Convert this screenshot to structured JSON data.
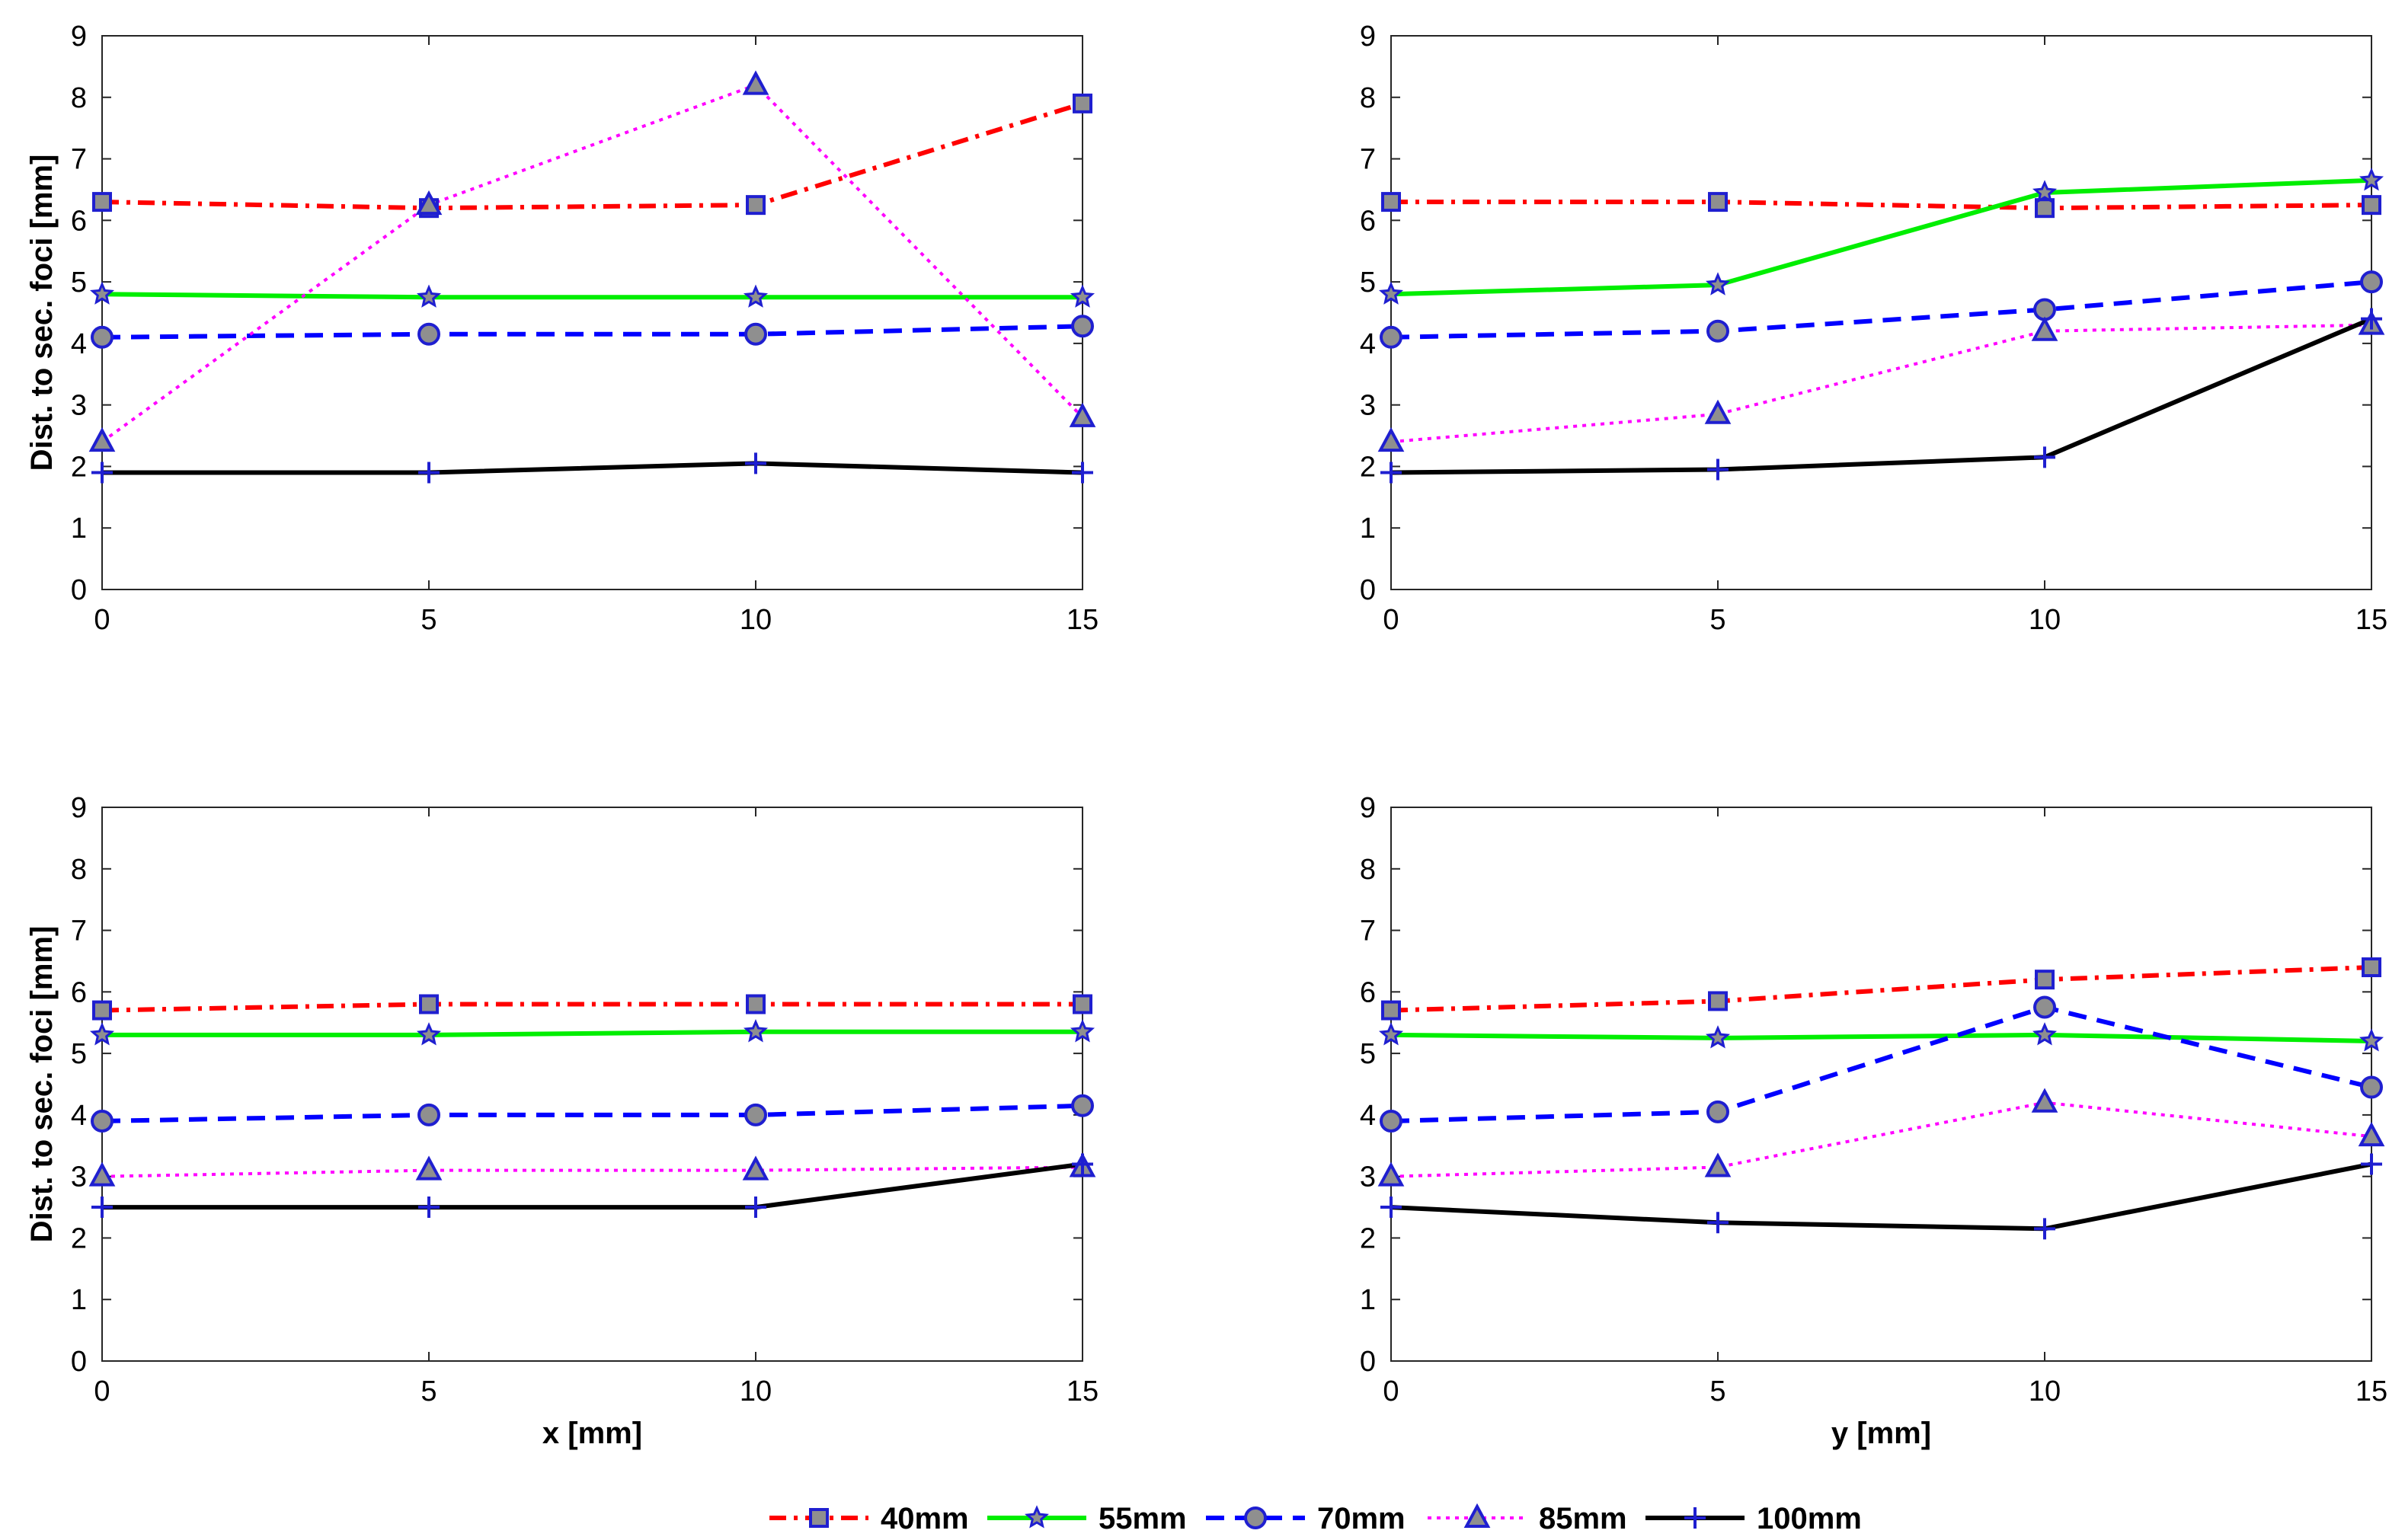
{
  "chart_data": [
    {
      "type": "line",
      "x": [
        0,
        5,
        10,
        15
      ],
      "xlim": [
        0,
        15
      ],
      "ylim": [
        0,
        9
      ],
      "xticks": [
        0,
        5,
        10,
        15
      ],
      "yticks": [
        0,
        1,
        2,
        3,
        4,
        5,
        6,
        7,
        8,
        9
      ],
      "xlabel": "",
      "ylabel": "Dist. to sec. foci [mm]",
      "grid": false,
      "series": [
        {
          "name": "40mm",
          "values": [
            6.3,
            6.2,
            6.25,
            7.9
          ]
        },
        {
          "name": "55mm",
          "values": [
            4.8,
            4.75,
            4.75,
            4.75
          ]
        },
        {
          "name": "70mm",
          "values": [
            4.1,
            4.15,
            4.15,
            4.28
          ]
        },
        {
          "name": "85mm",
          "values": [
            2.4,
            6.25,
            8.2,
            2.8
          ]
        },
        {
          "name": "100mm",
          "values": [
            1.9,
            1.9,
            2.05,
            1.9
          ]
        }
      ]
    },
    {
      "type": "line",
      "x": [
        0,
        5,
        10,
        15
      ],
      "xlim": [
        0,
        15
      ],
      "ylim": [
        0,
        9
      ],
      "xticks": [
        0,
        5,
        10,
        15
      ],
      "yticks": [
        0,
        1,
        2,
        3,
        4,
        5,
        6,
        7,
        8,
        9
      ],
      "xlabel": "",
      "ylabel": "",
      "grid": false,
      "series": [
        {
          "name": "40mm",
          "values": [
            6.3,
            6.3,
            6.2,
            6.25
          ]
        },
        {
          "name": "55mm",
          "values": [
            4.8,
            4.95,
            6.45,
            6.65
          ]
        },
        {
          "name": "70mm",
          "values": [
            4.1,
            4.2,
            4.55,
            5.0
          ]
        },
        {
          "name": "85mm",
          "values": [
            2.4,
            2.85,
            4.2,
            4.3
          ]
        },
        {
          "name": "100mm",
          "values": [
            1.9,
            1.95,
            2.15,
            4.4
          ]
        }
      ]
    },
    {
      "type": "line",
      "x": [
        0,
        5,
        10,
        15
      ],
      "xlim": [
        0,
        15
      ],
      "ylim": [
        0,
        9
      ],
      "xticks": [
        0,
        5,
        10,
        15
      ],
      "yticks": [
        0,
        1,
        2,
        3,
        4,
        5,
        6,
        7,
        8,
        9
      ],
      "xlabel": "x [mm]",
      "ylabel": "Dist. to sec. foci [mm]",
      "grid": false,
      "series": [
        {
          "name": "40mm",
          "values": [
            5.7,
            5.8,
            5.8,
            5.8
          ]
        },
        {
          "name": "55mm",
          "values": [
            5.3,
            5.3,
            5.35,
            5.35
          ]
        },
        {
          "name": "70mm",
          "values": [
            3.9,
            4.0,
            4.0,
            4.15
          ]
        },
        {
          "name": "85mm",
          "values": [
            3.0,
            3.1,
            3.1,
            3.15
          ]
        },
        {
          "name": "100mm",
          "values": [
            2.5,
            2.5,
            2.5,
            3.2
          ]
        }
      ]
    },
    {
      "type": "line",
      "x": [
        0,
        5,
        10,
        15
      ],
      "xlim": [
        0,
        15
      ],
      "ylim": [
        0,
        9
      ],
      "xticks": [
        0,
        5,
        10,
        15
      ],
      "yticks": [
        0,
        1,
        2,
        3,
        4,
        5,
        6,
        7,
        8,
        9
      ],
      "xlabel": "y [mm]",
      "ylabel": "",
      "grid": false,
      "series": [
        {
          "name": "40mm",
          "values": [
            5.7,
            5.85,
            6.2,
            6.4
          ]
        },
        {
          "name": "55mm",
          "values": [
            5.3,
            5.25,
            5.3,
            5.2
          ]
        },
        {
          "name": "70mm",
          "values": [
            3.9,
            4.05,
            5.75,
            4.45
          ]
        },
        {
          "name": "85mm",
          "values": [
            3.0,
            3.15,
            4.2,
            3.65
          ]
        },
        {
          "name": "100mm",
          "values": [
            2.5,
            2.25,
            2.15,
            3.2
          ]
        }
      ]
    }
  ],
  "legend": {
    "placement": "bottom-center",
    "entries": [
      {
        "label": "40mm",
        "color": "#ff0000",
        "line_style": "dash-dot",
        "marker": "square"
      },
      {
        "label": "55mm",
        "color": "#00ee00",
        "line_style": "solid",
        "marker": "star"
      },
      {
        "label": "70mm",
        "color": "#0000ff",
        "line_style": "dashed",
        "marker": "circle"
      },
      {
        "label": "85mm",
        "color": "#ff00ff",
        "line_style": "dotted",
        "marker": "triangle"
      },
      {
        "label": "100mm",
        "color": "#000000",
        "line_style": "solid",
        "marker": "plus"
      }
    ],
    "marker_edge_color": "#1f1fd0",
    "marker_fill_color": "#8f8f8f"
  }
}
